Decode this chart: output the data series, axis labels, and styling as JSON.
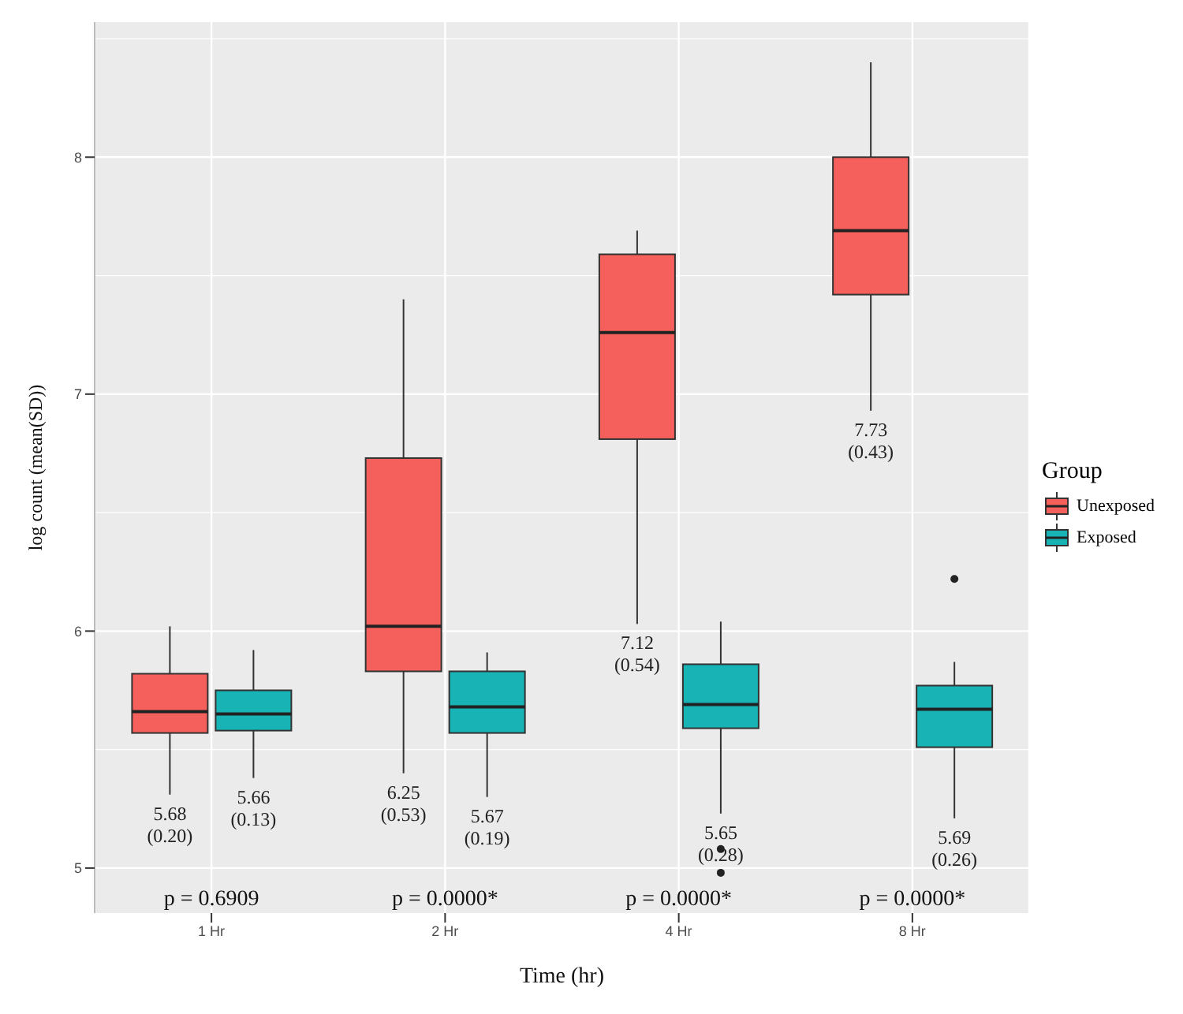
{
  "chart_data": {
    "type": "box",
    "xlabel": "Time (hr)",
    "ylabel": "log count (mean(SD))",
    "legend_title": "Group",
    "categories": [
      "1 Hr",
      "2 Hr",
      "4 Hr",
      "8 Hr"
    ],
    "ylim": [
      4.81,
      8.57
    ],
    "yticks": [
      5,
      6,
      7,
      8
    ],
    "grid": true,
    "legend": "right",
    "series": [
      {
        "name": "Unexposed",
        "color": "#f6605c",
        "boxes": [
          {
            "low": 5.31,
            "q1": 5.57,
            "median": 5.66,
            "q3": 5.82,
            "high": 6.02
          },
          {
            "low": 5.4,
            "q1": 5.83,
            "median": 6.02,
            "q3": 6.73,
            "high": 7.4
          },
          {
            "low": 6.03,
            "q1": 6.81,
            "median": 7.26,
            "q3": 7.59,
            "high": 7.69
          },
          {
            "low": 6.93,
            "q1": 7.42,
            "median": 7.69,
            "q3": 8.0,
            "high": 8.4
          }
        ],
        "value_labels": [
          "5.68\n(0.20)",
          "6.25\n(0.53)",
          "7.12\n(0.54)",
          "7.73\n(0.43)"
        ]
      },
      {
        "name": "Exposed",
        "color": "#17b3b5",
        "boxes": [
          {
            "low": 5.38,
            "q1": 5.58,
            "median": 5.65,
            "q3": 5.75,
            "high": 5.92
          },
          {
            "low": 5.3,
            "q1": 5.57,
            "median": 5.68,
            "q3": 5.83,
            "high": 5.91
          },
          {
            "low": 5.23,
            "q1": 5.59,
            "median": 5.69,
            "q3": 5.86,
            "high": 6.04,
            "outliers": [
              5.08,
              4.98
            ]
          },
          {
            "low": 5.21,
            "q1": 5.51,
            "median": 5.67,
            "q3": 5.77,
            "high": 5.87,
            "outliers": [
              6.22
            ]
          }
        ],
        "value_labels": [
          "5.66\n(0.13)",
          "5.67\n(0.19)",
          "5.65\n(0.28)",
          "5.69\n(0.26)"
        ]
      }
    ],
    "annotations": [
      "p = 0.6909",
      "p = 0.0000*",
      "p = 0.0000*",
      "p = 0.0000*"
    ]
  }
}
